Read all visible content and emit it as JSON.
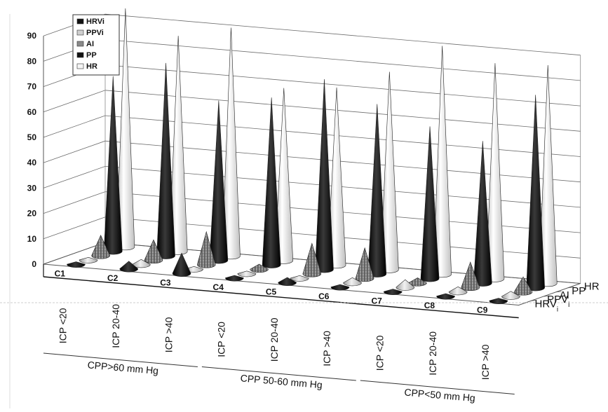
{
  "chart_data": {
    "type": "bar",
    "shape": "3d-cone",
    "categories": [
      "C1",
      "C2",
      "C3",
      "C4",
      "C5",
      "C6",
      "C7",
      "C8",
      "C9"
    ],
    "icp_labels": [
      "ICP <20",
      "ICP 20-40",
      "ICP >40",
      "ICP <20",
      "ICP 20-40",
      "ICP >40",
      "ICP <20",
      "ICP 20-40",
      "ICP >40"
    ],
    "cpp_groups": [
      {
        "label": "CPP>60 mm Hg",
        "from": 0,
        "to": 2
      },
      {
        "label": "CPP 50-60 mm Hg",
        "from": 3,
        "to": 5
      },
      {
        "label": "CPP<50 mm Hg",
        "from": 6,
        "to": 8
      }
    ],
    "yticks": [
      "0",
      "10",
      "20",
      "30",
      "40",
      "50",
      "60",
      "70",
      "80",
      "90"
    ],
    "ylim": [
      0,
      90
    ],
    "depth_labels": [
      {
        "main": "HRV",
        "sub": "i"
      },
      {
        "main": "PPV",
        "sub": "i"
      },
      {
        "main": "AI",
        "sub": ""
      },
      {
        "main": "PP",
        "sub": ""
      },
      {
        "main": "HR",
        "sub": ""
      }
    ],
    "legend": [
      "HRVi",
      "PPVi",
      "AI",
      "PP",
      "HR"
    ],
    "legend_position": "top-left",
    "series": [
      {
        "name": "HRVi",
        "color": "#111111",
        "values": [
          1,
          3,
          8,
          1,
          2,
          1,
          1,
          1,
          1
        ]
      },
      {
        "name": "PPVi",
        "color": "#c8c8c8",
        "values": [
          1,
          2,
          1,
          1,
          1,
          2,
          3,
          2,
          2
        ]
      },
      {
        "name": "AI",
        "color": "#8a8a8a",
        "values": [
          8,
          8,
          13,
          2,
          12,
          12,
          2,
          10,
          6
        ]
      },
      {
        "name": "PP",
        "color": "#111111",
        "values": [
          69,
          76,
          63,
          66,
          75,
          67,
          60,
          56,
          76
        ]
      },
      {
        "name": "HR",
        "color": "#eaeaea",
        "values": [
          94,
          85,
          90,
          68,
          70,
          78,
          90,
          85,
          86
        ]
      }
    ]
  }
}
